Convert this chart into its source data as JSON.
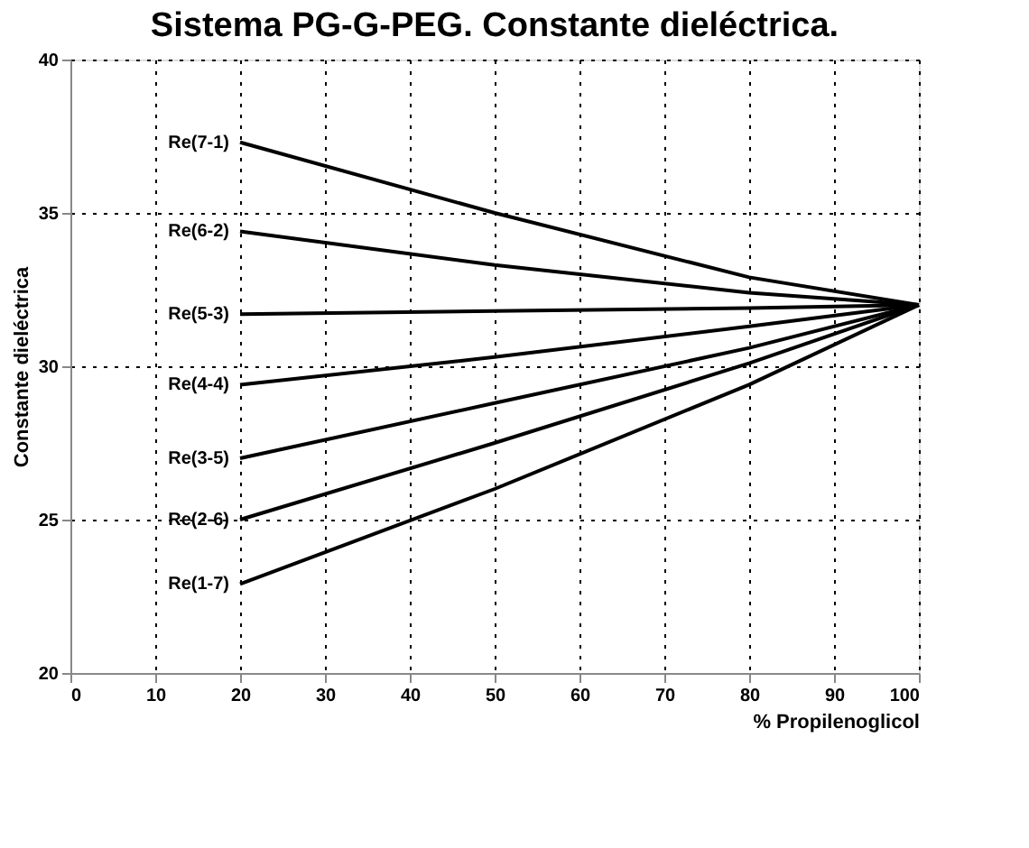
{
  "chart_data": {
    "type": "line",
    "title": "Sistema PG-G-PEG. Constante dieléctrica.",
    "xlabel": "% Propilenoglicol",
    "ylabel": "Constante dieléctrica",
    "x": [
      20,
      50,
      80,
      100
    ],
    "series": [
      {
        "name": "Re(7-1)",
        "color": "#000000",
        "values": [
          37.3,
          35.0,
          32.9,
          32.0
        ]
      },
      {
        "name": "Re(6-2)",
        "color": "#000000",
        "values": [
          34.4,
          33.3,
          32.4,
          32.0
        ]
      },
      {
        "name": "Re(5-3)",
        "color": "#000000",
        "values": [
          31.7,
          31.8,
          31.9,
          32.0
        ]
      },
      {
        "name": "Re(4-4)",
        "color": "#000000",
        "values": [
          29.4,
          30.3,
          31.3,
          32.0
        ]
      },
      {
        "name": "Re(3-5)",
        "color": "#000000",
        "values": [
          27.0,
          28.8,
          30.6,
          32.0
        ]
      },
      {
        "name": "Re(2-6)",
        "color": "#000000",
        "values": [
          25.0,
          27.5,
          30.1,
          32.0
        ]
      },
      {
        "name": "Re(1-7)",
        "color": "#000000",
        "values": [
          22.9,
          26.0,
          29.4,
          32.0
        ]
      }
    ],
    "xlim": [
      0,
      100
    ],
    "xticks": [
      0,
      10,
      20,
      30,
      40,
      50,
      60,
      70,
      80,
      90,
      100
    ],
    "ylim": [
      20,
      40
    ],
    "yticks": [
      20,
      25,
      30,
      35,
      40
    ],
    "grid": true,
    "legend": false,
    "marker": "none",
    "line_style": "solid"
  }
}
